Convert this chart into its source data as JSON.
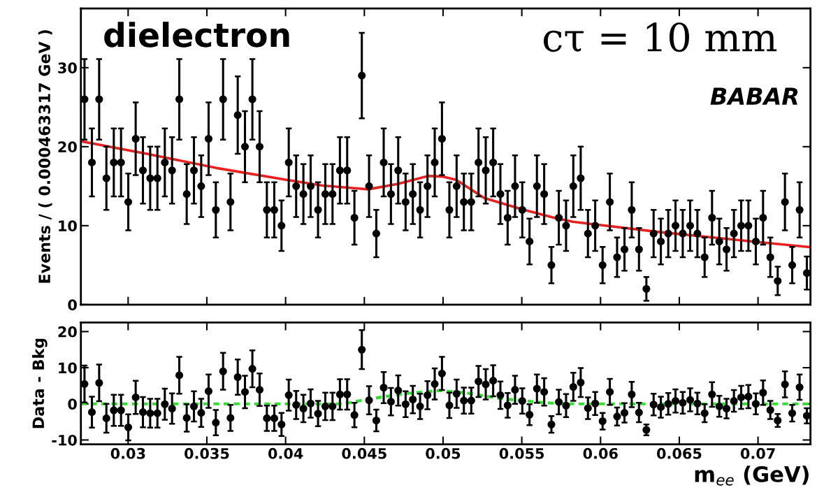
{
  "chart_data": [
    {
      "type": "scatter",
      "ylabel": "Events / ( 0.000463317 GeV )",
      "xlim": [
        0.027,
        0.07333
      ],
      "ylim": [
        0,
        37.5
      ],
      "xticks": [
        0.03,
        0.035,
        0.04,
        0.045,
        0.05,
        0.055,
        0.06,
        0.065,
        0.07
      ],
      "yticks": [
        0,
        10,
        20,
        30
      ],
      "tick_labels": "y",
      "grid": false,
      "legend": false,
      "marker": "circle",
      "annotations": [
        "dielectron",
        "cτ = 10 mm",
        "BABAR"
      ],
      "series": [
        {
          "color": "#000000",
          "x": [
            0.02723,
            0.0277,
            0.02816,
            0.02862,
            0.02909,
            0.02955,
            0.03001,
            0.03048,
            0.03094,
            0.0314,
            0.03186,
            0.03233,
            0.03279,
            0.03325,
            0.03372,
            0.03418,
            0.03464,
            0.03511,
            0.03557,
            0.03603,
            0.0365,
            0.03696,
            0.03742,
            0.03789,
            0.03835,
            0.03881,
            0.03928,
            0.03974,
            0.0402,
            0.04067,
            0.04113,
            0.04159,
            0.04206,
            0.04252,
            0.04298,
            0.04345,
            0.04391,
            0.04437,
            0.04484,
            0.0453,
            0.04576,
            0.04623,
            0.04669,
            0.04715,
            0.04762,
            0.04808,
            0.04854,
            0.04901,
            0.04947,
            0.04993,
            0.0504,
            0.05086,
            0.05132,
            0.05179,
            0.05225,
            0.05271,
            0.05318,
            0.05364,
            0.0541,
            0.05457,
            0.05503,
            0.05549,
            0.05596,
            0.05642,
            0.05688,
            0.05735,
            0.05781,
            0.05827,
            0.05874,
            0.0592,
            0.05966,
            0.06013,
            0.06059,
            0.06105,
            0.06152,
            0.06198,
            0.06244,
            0.06291,
            0.06337,
            0.06383,
            0.0643,
            0.06476,
            0.06522,
            0.06569,
            0.06615,
            0.06661,
            0.06708,
            0.06754,
            0.068,
            0.06847,
            0.06893,
            0.06939,
            0.06986,
            0.07032,
            0.07078,
            0.07125,
            0.07171,
            0.07217,
            0.07264,
            0.0731
          ],
          "values": [
            26,
            18,
            26,
            16,
            18,
            18,
            13,
            21,
            17,
            16,
            16,
            18,
            17,
            26,
            14,
            17,
            15,
            21,
            12,
            26,
            13,
            24,
            20,
            26,
            20,
            12,
            12,
            10,
            18,
            15,
            14,
            15,
            12,
            14,
            14,
            17,
            17,
            11,
            29,
            15,
            9,
            18,
            14,
            17,
            13,
            14,
            12,
            15,
            18,
            21,
            12,
            15,
            13,
            13,
            18,
            17,
            18,
            14,
            11,
            15,
            12,
            8,
            15,
            14,
            5,
            11,
            10,
            15,
            16,
            9,
            10,
            5,
            13,
            6,
            7,
            12,
            7,
            2,
            9,
            8,
            9,
            10,
            9,
            10,
            9,
            6,
            11,
            8,
            7,
            9,
            10,
            10,
            8,
            11,
            6,
            3,
            13,
            5,
            12,
            4
          ],
          "errors": [
            5.1,
            4.3,
            5.1,
            4.0,
            4.3,
            4.3,
            3.6,
            4.6,
            4.2,
            4.0,
            4.0,
            4.3,
            4.2,
            5.1,
            3.8,
            4.2,
            3.9,
            4.6,
            3.5,
            5.1,
            3.6,
            4.9,
            4.5,
            5.1,
            4.5,
            3.5,
            3.5,
            3.2,
            4.3,
            3.9,
            3.8,
            3.9,
            3.5,
            3.8,
            3.8,
            4.2,
            4.2,
            3.4,
            5.4,
            3.9,
            3.0,
            4.3,
            3.8,
            4.2,
            3.6,
            3.8,
            3.5,
            3.9,
            4.3,
            4.6,
            3.5,
            3.9,
            3.6,
            3.6,
            4.3,
            4.2,
            4.3,
            3.8,
            3.4,
            3.9,
            3.5,
            2.9,
            3.9,
            3.8,
            2.3,
            3.4,
            3.2,
            3.9,
            4.0,
            3.0,
            3.2,
            2.3,
            3.6,
            2.5,
            2.7,
            3.5,
            2.7,
            1.5,
            3.0,
            2.9,
            3.0,
            3.2,
            3.0,
            3.2,
            3.0,
            2.5,
            3.4,
            2.9,
            2.7,
            3.0,
            3.2,
            3.2,
            2.9,
            3.4,
            2.5,
            1.8,
            3.6,
            2.3,
            3.5,
            2.1
          ]
        },
        {
          "type": "line",
          "color": "#e8201e",
          "line_style": "solid",
          "marker": "none",
          "x": [
            0.027,
            0.03117,
            0.03561,
            0.04005,
            0.04227,
            0.04524,
            0.04715,
            0.04906,
            0.05,
            0.05083,
            0.05261,
            0.05514,
            0.05705,
            0.05824,
            0.0637,
            0.06965,
            0.0732
          ],
          "values": [
            20.7,
            19.1,
            17.3,
            15.8,
            15.1,
            14.6,
            15.3,
            16.3,
            16.2,
            15.8,
            13.5,
            12.0,
            11.0,
            10.5,
            9.2,
            8.0,
            7.3
          ]
        }
      ]
    },
    {
      "type": "scatter",
      "ylabel": "Data - Bkg",
      "xlabel": "m$_{ee}$ (GeV)",
      "xlim": [
        0.027,
        0.07333
      ],
      "ylim": [
        -11.2,
        22.5
      ],
      "xticks": [
        0.03,
        0.035,
        0.04,
        0.045,
        0.05,
        0.055,
        0.06,
        0.065,
        0.07
      ],
      "yticks": [
        -10,
        0,
        10,
        20
      ],
      "grid": false,
      "legend": false,
      "marker": "circle",
      "series": [
        {
          "color": "#000000",
          "x": [
            0.02723,
            0.0277,
            0.02816,
            0.02862,
            0.02909,
            0.02955,
            0.03001,
            0.03048,
            0.03094,
            0.0314,
            0.03186,
            0.03233,
            0.03279,
            0.03325,
            0.03372,
            0.03418,
            0.03464,
            0.03511,
            0.03557,
            0.03603,
            0.0365,
            0.03696,
            0.03742,
            0.03789,
            0.03835,
            0.03881,
            0.03928,
            0.03974,
            0.0402,
            0.04067,
            0.04113,
            0.04159,
            0.04206,
            0.04252,
            0.04298,
            0.04345,
            0.04391,
            0.04437,
            0.04484,
            0.0453,
            0.04576,
            0.04623,
            0.04669,
            0.04715,
            0.04762,
            0.04808,
            0.04854,
            0.04901,
            0.04947,
            0.04993,
            0.0504,
            0.05086,
            0.05132,
            0.05179,
            0.05225,
            0.05271,
            0.05318,
            0.05364,
            0.0541,
            0.05457,
            0.05503,
            0.05549,
            0.05596,
            0.05642,
            0.05688,
            0.05735,
            0.05781,
            0.05827,
            0.05874,
            0.0592,
            0.05966,
            0.06013,
            0.06059,
            0.06105,
            0.06152,
            0.06198,
            0.06244,
            0.06291,
            0.06337,
            0.06383,
            0.0643,
            0.06476,
            0.06522,
            0.06569,
            0.06615,
            0.06661,
            0.06708,
            0.06754,
            0.068,
            0.06847,
            0.06893,
            0.06939,
            0.06986,
            0.07032,
            0.07078,
            0.07125,
            0.07171,
            0.07217,
            0.07264,
            0.0731
          ],
          "values": [
            5.5,
            -2.3,
            5.8,
            -4.0,
            -1.8,
            -1.8,
            -6.5,
            1.8,
            -2.3,
            -2.6,
            -2.6,
            -0.1,
            -1.3,
            7.9,
            -3.9,
            -0.7,
            -2.5,
            3.5,
            -5.2,
            9.0,
            -3.9,
            7.4,
            3.3,
            9.7,
            3.9,
            -4.0,
            -4.0,
            -5.7,
            2.4,
            -0.3,
            -1.3,
            0.1,
            -2.7,
            -0.7,
            -0.7,
            2.6,
            2.6,
            -3.1,
            15.0,
            1.0,
            -4.6,
            4.5,
            0.6,
            3.7,
            -0.1,
            1.2,
            -0.7,
            2.4,
            5.5,
            8.4,
            -0.4,
            2.8,
            0.9,
            0.9,
            6.2,
            5.4,
            6.4,
            2.4,
            -0.4,
            3.9,
            0.8,
            -3.0,
            4.2,
            3.3,
            -5.7,
            0.5,
            -0.5,
            4.7,
            5.9,
            -1.2,
            0.1,
            -4.8,
            3.3,
            -3.5,
            -2.5,
            2.6,
            -2.4,
            -7.2,
            -0.2,
            -0.9,
            0,
            0.8,
            0.3,
            1.1,
            0.1,
            -2.6,
            2.6,
            -0.7,
            -1.3,
            0.8,
            1.8,
            2.0,
            0,
            3.1,
            -1.7,
            -4.6,
            5.4,
            -2.6,
            4.6,
            -3.3
          ],
          "errors": [
            5.1,
            4.3,
            5.1,
            4.0,
            4.3,
            4.3,
            3.6,
            4.6,
            4.2,
            4.0,
            4.0,
            4.3,
            4.2,
            5.1,
            3.8,
            4.2,
            3.9,
            4.6,
            3.5,
            5.1,
            3.6,
            4.9,
            4.5,
            5.1,
            4.5,
            3.5,
            3.5,
            3.2,
            4.3,
            3.9,
            3.8,
            3.9,
            3.5,
            3.8,
            3.8,
            4.2,
            4.2,
            3.4,
            5.4,
            3.9,
            3.0,
            4.3,
            3.8,
            4.2,
            3.6,
            3.8,
            3.5,
            3.9,
            4.3,
            4.6,
            3.5,
            3.9,
            3.6,
            3.6,
            4.3,
            4.2,
            4.3,
            3.8,
            3.4,
            3.9,
            3.5,
            2.9,
            3.9,
            3.8,
            2.3,
            3.4,
            3.2,
            3.9,
            4.0,
            3.0,
            3.2,
            2.3,
            3.6,
            2.5,
            2.7,
            3.5,
            2.7,
            1.5,
            3.0,
            2.9,
            3.0,
            3.2,
            3.0,
            3.2,
            3.0,
            2.5,
            3.4,
            2.9,
            2.7,
            3.0,
            3.2,
            3.2,
            2.9,
            3.4,
            2.5,
            1.8,
            3.6,
            2.3,
            3.5,
            2.1
          ]
        },
        {
          "type": "line",
          "color": "#33dd33",
          "line_style": "dashed",
          "marker": "none",
          "x": [
            0.027,
            0.0437,
            0.0451,
            0.0475,
            0.0498,
            0.0515,
            0.0536,
            0.0564,
            0.058,
            0.07333
          ],
          "values": [
            0,
            0,
            1.2,
            2.8,
            3.7,
            3.0,
            1.5,
            0.3,
            0,
            0
          ]
        }
      ]
    }
  ]
}
